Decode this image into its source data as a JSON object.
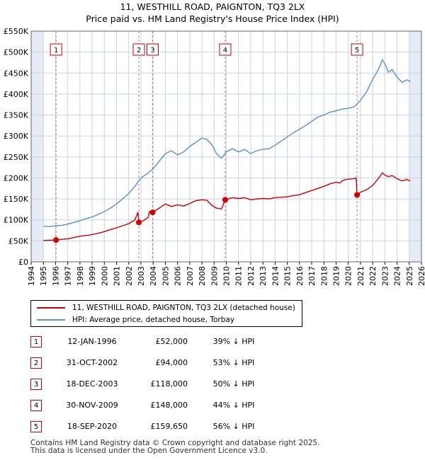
{
  "title_line1": "11, WESTHILL ROAD, PAIGNTON, TQ3 2LX",
  "title_line2": "Price paid vs. HM Land Registry's House Price Index (HPI)",
  "colors": {
    "price": "#cc0000",
    "hpi": "#5b8fd1",
    "shade": "#e5ecf7",
    "grid": "#c8d3e6"
  },
  "chart_data": {
    "type": "line",
    "title": "Price paid vs. HM Land Registry's House Price Index (HPI)",
    "xlim": [
      1994,
      2026
    ],
    "ylim": [
      0,
      550000
    ],
    "x_ticks": [
      1994,
      1995,
      1996,
      1997,
      1998,
      1999,
      2000,
      2001,
      2002,
      2003,
      2004,
      2005,
      2006,
      2007,
      2008,
      2009,
      2010,
      2011,
      2012,
      2013,
      2014,
      2015,
      2016,
      2017,
      2018,
      2019,
      2020,
      2021,
      2022,
      2023,
      2024,
      2025,
      2026
    ],
    "y_ticks": [
      {
        "value": 0,
        "label": "£0"
      },
      {
        "value": 50000,
        "label": "£50K"
      },
      {
        "value": 100000,
        "label": "£100K"
      },
      {
        "value": 150000,
        "label": "£150K"
      },
      {
        "value": 200000,
        "label": "£200K"
      },
      {
        "value": 250000,
        "label": "£250K"
      },
      {
        "value": 300000,
        "label": "£300K"
      },
      {
        "value": 350000,
        "label": "£350K"
      },
      {
        "value": 400000,
        "label": "£400K"
      },
      {
        "value": 450000,
        "label": "£450K"
      },
      {
        "value": 500000,
        "label": "£500K"
      },
      {
        "value": 550000,
        "label": "£550K"
      }
    ],
    "shaded_ranges": [
      [
        1994,
        1995
      ],
      [
        2025,
        2026
      ]
    ],
    "series": [
      {
        "name": "11, WESTHILL ROAD, PAIGNTON, TQ3 2LX (detached house)",
        "color": "#cc0000",
        "points": [
          [
            1995.0,
            51000
          ],
          [
            1995.5,
            51500
          ],
          [
            1996.04,
            52000
          ],
          [
            1996.5,
            53500
          ],
          [
            1997.0,
            55000
          ],
          [
            1997.5,
            58000
          ],
          [
            1998.0,
            61000
          ],
          [
            1998.5,
            63000
          ],
          [
            1999.0,
            65000
          ],
          [
            1999.5,
            68000
          ],
          [
            2000.0,
            72000
          ],
          [
            2000.5,
            77000
          ],
          [
            2001.0,
            81000
          ],
          [
            2001.5,
            86000
          ],
          [
            2002.0,
            91000
          ],
          [
            2002.5,
            100000
          ],
          [
            2002.75,
            118000
          ],
          [
            2002.83,
            94000
          ],
          [
            2003.2,
            98000
          ],
          [
            2003.6,
            106000
          ],
          [
            2003.7,
            120000
          ],
          [
            2003.96,
            118000
          ],
          [
            2004.5,
            128000
          ],
          [
            2005.0,
            138000
          ],
          [
            2005.5,
            132000
          ],
          [
            2006.0,
            136000
          ],
          [
            2006.5,
            133000
          ],
          [
            2007.0,
            139000
          ],
          [
            2007.5,
            146000
          ],
          [
            2008.0,
            148000
          ],
          [
            2008.4,
            147000
          ],
          [
            2008.8,
            135000
          ],
          [
            2009.2,
            128000
          ],
          [
            2009.6,
            126000
          ],
          [
            2009.91,
            148000
          ],
          [
            2010.5,
            153000
          ],
          [
            2011.0,
            151000
          ],
          [
            2011.5,
            153000
          ],
          [
            2012.0,
            148000
          ],
          [
            2012.5,
            150000
          ],
          [
            2013.0,
            151000
          ],
          [
            2013.5,
            150000
          ],
          [
            2014.0,
            153000
          ],
          [
            2014.5,
            154000
          ],
          [
            2015.0,
            155000
          ],
          [
            2015.5,
            158000
          ],
          [
            2016.0,
            160000
          ],
          [
            2016.5,
            165000
          ],
          [
            2017.0,
            170000
          ],
          [
            2017.5,
            175000
          ],
          [
            2018.0,
            180000
          ],
          [
            2018.5,
            186000
          ],
          [
            2019.0,
            190000
          ],
          [
            2019.3,
            188000
          ],
          [
            2019.6,
            195000
          ],
          [
            2020.0,
            197000
          ],
          [
            2020.4,
            198000
          ],
          [
            2020.65,
            200000
          ],
          [
            2020.72,
            159650
          ],
          [
            2021.0,
            166000
          ],
          [
            2021.5,
            172000
          ],
          [
            2022.0,
            182000
          ],
          [
            2022.5,
            200000
          ],
          [
            2022.8,
            212000
          ],
          [
            2023.0,
            207000
          ],
          [
            2023.3,
            203000
          ],
          [
            2023.6,
            206000
          ],
          [
            2024.0,
            198000
          ],
          [
            2024.4,
            193000
          ],
          [
            2024.8,
            196000
          ],
          [
            2025.1,
            193000
          ]
        ]
      },
      {
        "name": "HPI: Average price, detached house, Torbay",
        "color": "#5b8fd1",
        "points": [
          [
            1995.0,
            85000
          ],
          [
            1995.5,
            84000
          ],
          [
            1996.0,
            86000
          ],
          [
            1996.5,
            87000
          ],
          [
            1997.0,
            90000
          ],
          [
            1997.5,
            94000
          ],
          [
            1998.0,
            98000
          ],
          [
            1998.5,
            103000
          ],
          [
            1999.0,
            107000
          ],
          [
            1999.5,
            113000
          ],
          [
            2000.0,
            120000
          ],
          [
            2000.5,
            128000
          ],
          [
            2001.0,
            138000
          ],
          [
            2001.5,
            150000
          ],
          [
            2002.0,
            163000
          ],
          [
            2002.5,
            180000
          ],
          [
            2003.0,
            200000
          ],
          [
            2003.5,
            210000
          ],
          [
            2004.0,
            222000
          ],
          [
            2004.5,
            240000
          ],
          [
            2005.0,
            258000
          ],
          [
            2005.5,
            265000
          ],
          [
            2006.0,
            255000
          ],
          [
            2006.5,
            262000
          ],
          [
            2007.0,
            275000
          ],
          [
            2007.5,
            285000
          ],
          [
            2008.0,
            295000
          ],
          [
            2008.4,
            292000
          ],
          [
            2008.8,
            280000
          ],
          [
            2009.2,
            258000
          ],
          [
            2009.6,
            247000
          ],
          [
            2010.0,
            262000
          ],
          [
            2010.5,
            270000
          ],
          [
            2011.0,
            262000
          ],
          [
            2011.5,
            268000
          ],
          [
            2012.0,
            258000
          ],
          [
            2012.5,
            265000
          ],
          [
            2013.0,
            268000
          ],
          [
            2013.5,
            270000
          ],
          [
            2014.0,
            278000
          ],
          [
            2014.5,
            288000
          ],
          [
            2015.0,
            298000
          ],
          [
            2015.5,
            308000
          ],
          [
            2016.0,
            316000
          ],
          [
            2016.5,
            325000
          ],
          [
            2017.0,
            335000
          ],
          [
            2017.5,
            345000
          ],
          [
            2018.0,
            350000
          ],
          [
            2018.5,
            357000
          ],
          [
            2019.0,
            360000
          ],
          [
            2019.5,
            364000
          ],
          [
            2020.0,
            366000
          ],
          [
            2020.5,
            370000
          ],
          [
            2021.0,
            385000
          ],
          [
            2021.5,
            405000
          ],
          [
            2022.0,
            435000
          ],
          [
            2022.5,
            460000
          ],
          [
            2022.8,
            482000
          ],
          [
            2023.0,
            472000
          ],
          [
            2023.3,
            452000
          ],
          [
            2023.6,
            458000
          ],
          [
            2024.0,
            440000
          ],
          [
            2024.4,
            428000
          ],
          [
            2024.8,
            434000
          ],
          [
            2025.1,
            430000
          ]
        ]
      }
    ],
    "sales": [
      {
        "label": "1",
        "x": 1996.04,
        "price": 52000
      },
      {
        "label": "2",
        "x": 2002.83,
        "price": 94000
      },
      {
        "label": "3",
        "x": 2003.96,
        "price": 118000
      },
      {
        "label": "4",
        "x": 2009.91,
        "price": 148000
      },
      {
        "label": "5",
        "x": 2020.72,
        "price": 159650
      }
    ]
  },
  "legend": {
    "price_label": "11, WESTHILL ROAD, PAIGNTON, TQ3 2LX (detached house)",
    "hpi_label": "HPI: Average price, detached house, Torbay"
  },
  "transactions": [
    {
      "num": "1",
      "date": "12-JAN-1996",
      "price": "£52,000",
      "hpi": "39% ↓ HPI"
    },
    {
      "num": "2",
      "date": "31-OCT-2002",
      "price": "£94,000",
      "hpi": "53% ↓ HPI"
    },
    {
      "num": "3",
      "date": "18-DEC-2003",
      "price": "£118,000",
      "hpi": "50% ↓ HPI"
    },
    {
      "num": "4",
      "date": "30-NOV-2009",
      "price": "£148,000",
      "hpi": "44% ↓ HPI"
    },
    {
      "num": "5",
      "date": "18-SEP-2020",
      "price": "£159,650",
      "hpi": "56% ↓ HPI"
    }
  ],
  "footer": {
    "line1": "Contains HM Land Registry data © Crown copyright and database right 2025.",
    "line2": "This data is licensed under the Open Government Licence v3.0."
  }
}
